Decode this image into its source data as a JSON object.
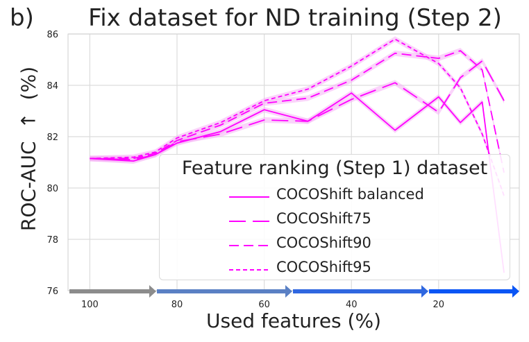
{
  "panel_label": "b)",
  "chart_data": {
    "type": "line",
    "title": "Fix dataset for ND training (Step 2)",
    "xlabel": "Used features (%)",
    "ylabel": "ROC-AUC  ↑  (%)",
    "xlim": [
      105,
      1.5
    ],
    "ylim": [
      76,
      86
    ],
    "x_ticks": [
      100,
      80,
      60,
      40,
      20
    ],
    "y_ticks": [
      76,
      78,
      80,
      82,
      84,
      86
    ],
    "grid": true,
    "legend_title": "Feature ranking (Step 1) dataset",
    "legend_position": "lower-right",
    "line_color": "#ff00ff",
    "band_color": "#f5b0f5",
    "series": [
      {
        "name": "COCOShift balanced",
        "dash": "solid",
        "x": [
          100,
          90,
          85,
          80,
          70,
          60,
          50,
          40,
          30,
          20,
          15,
          10,
          5
        ],
        "y": [
          81.15,
          81.05,
          81.3,
          81.75,
          82.2,
          83.05,
          82.6,
          83.7,
          82.25,
          83.55,
          82.55,
          83.35,
          76.7
        ]
      },
      {
        "name": "COCOShift75",
        "dash": "longdash",
        "x": [
          100,
          90,
          85,
          80,
          70,
          60,
          50,
          40,
          30,
          20,
          15,
          10,
          5
        ],
        "y": [
          81.15,
          81.1,
          81.3,
          81.8,
          82.1,
          82.65,
          82.6,
          83.45,
          84.1,
          82.95,
          84.3,
          84.95,
          83.4
        ]
      },
      {
        "name": "COCOShift90",
        "dash": "dash",
        "x": [
          100,
          90,
          85,
          80,
          70,
          60,
          50,
          40,
          30,
          20,
          15,
          10,
          5
        ],
        "y": [
          81.15,
          81.15,
          81.35,
          81.85,
          82.45,
          83.3,
          83.5,
          84.2,
          85.25,
          85.05,
          85.35,
          84.6,
          80.6
        ]
      },
      {
        "name": "COCOShift95",
        "dash": "shortdash",
        "x": [
          100,
          90,
          85,
          80,
          70,
          60,
          50,
          40,
          30,
          20,
          15,
          10,
          5
        ],
        "y": [
          81.15,
          81.2,
          81.4,
          81.95,
          82.55,
          83.4,
          83.85,
          84.75,
          85.8,
          84.85,
          83.9,
          82.1,
          79.7
        ]
      }
    ],
    "arrow_band_colors": [
      "#8c8c8c",
      "#5a80c4",
      "#2f67e0",
      "#1d5ee8",
      "#0a55f5"
    ]
  }
}
